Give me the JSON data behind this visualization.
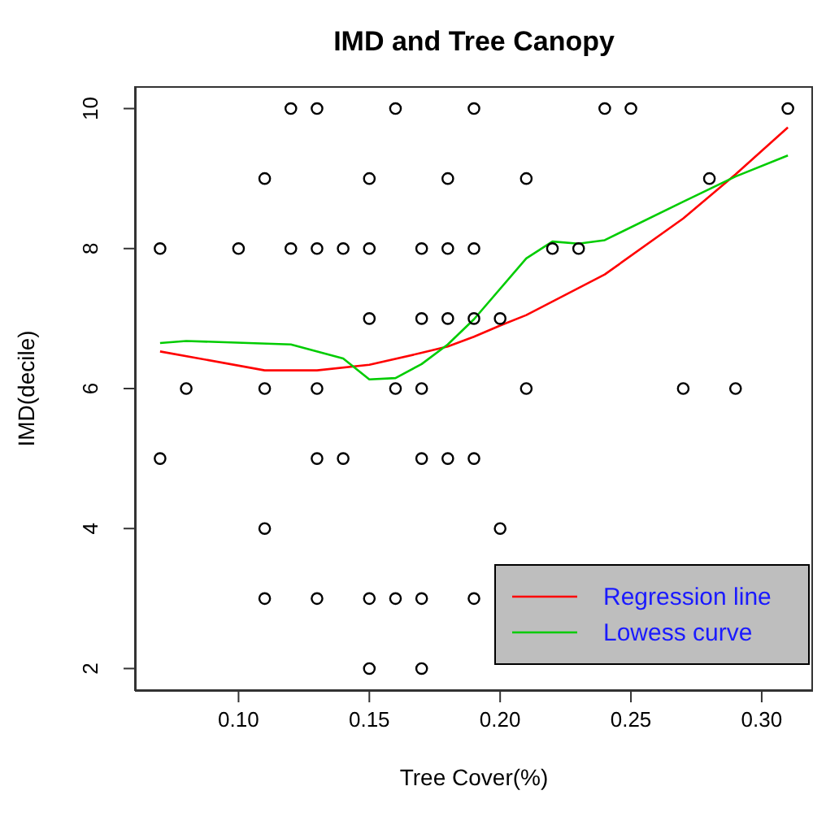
{
  "chart_data": {
    "type": "scatter",
    "title": "IMD and Tree Canopy",
    "xlabel": "Tree Cover(%)",
    "ylabel": "IMD(decile)",
    "xlim": [
      0.0604,
      0.3196
    ],
    "ylim": [
      1.68,
      10.32
    ],
    "xticks": [
      {
        "value": 0.1,
        "label": "0.10"
      },
      {
        "value": 0.15,
        "label": "0.15"
      },
      {
        "value": 0.2,
        "label": "0.20"
      },
      {
        "value": 0.25,
        "label": "0.25"
      },
      {
        "value": 0.3,
        "label": "0.30"
      }
    ],
    "yticks": [
      2,
      4,
      6,
      8,
      10
    ],
    "legend": "bottom right",
    "grid": false,
    "series": [
      {
        "marker": "circle",
        "color": "#000000",
        "x": [
          0.12,
          0.13,
          0.16,
          0.19,
          0.24,
          0.25,
          0.31,
          0.11,
          0.15,
          0.18,
          0.21,
          0.28,
          0.07,
          0.1,
          0.12,
          0.13,
          0.14,
          0.15,
          0.17,
          0.18,
          0.19,
          0.22,
          0.23,
          0.15,
          0.17,
          0.18,
          0.19,
          0.2,
          0.08,
          0.11,
          0.13,
          0.16,
          0.17,
          0.21,
          0.27,
          0.29,
          0.07,
          0.13,
          0.14,
          0.17,
          0.18,
          0.19,
          0.11,
          0.2,
          0.11,
          0.13,
          0.15,
          0.16,
          0.17,
          0.19,
          0.15,
          0.17
        ],
        "values": [
          10,
          10,
          10,
          10,
          10,
          10,
          10,
          9,
          9,
          9,
          9,
          9,
          8,
          8,
          8,
          8,
          8,
          8,
          8,
          8,
          8,
          8,
          8,
          7,
          7,
          7,
          7,
          7,
          6,
          6,
          6,
          6,
          6,
          6,
          6,
          6,
          5,
          5,
          5,
          5,
          5,
          5,
          4,
          4,
          3,
          3,
          3,
          3,
          3,
          3,
          2,
          2
        ]
      },
      {
        "type": "line",
        "name": "Regression line",
        "color": "#ff0000",
        "marker": "none",
        "x": [
          0.07,
          0.11,
          0.13,
          0.15,
          0.17,
          0.18,
          0.19,
          0.2,
          0.21,
          0.24,
          0.27,
          0.29,
          0.31
        ],
        "values": [
          6.53,
          6.26,
          6.26,
          6.34,
          6.51,
          6.6,
          6.74,
          6.9,
          7.05,
          7.63,
          8.43,
          9.06,
          9.73
        ]
      },
      {
        "type": "line",
        "name": "Lowess curve",
        "color": "#00cc00",
        "marker": "none",
        "x": [
          0.07,
          0.08,
          0.12,
          0.14,
          0.15,
          0.16,
          0.17,
          0.18,
          0.19,
          0.21,
          0.22,
          0.23,
          0.24,
          0.27,
          0.29,
          0.31
        ],
        "values": [
          6.65,
          6.68,
          6.63,
          6.43,
          6.13,
          6.15,
          6.35,
          6.63,
          6.99,
          7.86,
          8.1,
          8.07,
          8.12,
          8.67,
          9.03,
          9.33
        ]
      }
    ]
  }
}
